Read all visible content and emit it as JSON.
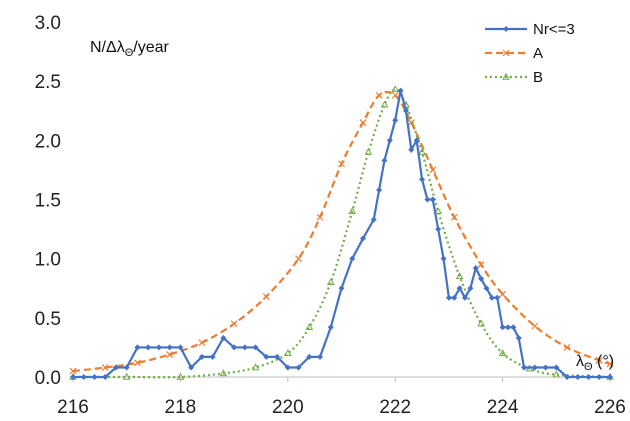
{
  "chart_data": {
    "type": "line",
    "title": "",
    "ylabel_parts": {
      "pre": "N/Δλ",
      "sub": "Θ",
      "post": "/year"
    },
    "xlabel_parts": {
      "pre": "λ",
      "sub": "Θ",
      "post": " (°)"
    },
    "xlim": [
      216,
      226
    ],
    "ylim": [
      0,
      3.0
    ],
    "x_ticks": [
      216,
      218,
      220,
      222,
      224,
      226
    ],
    "y_ticks": [
      0.0,
      0.5,
      1.0,
      1.5,
      2.0,
      2.5,
      3.0
    ],
    "x_tick_labels": [
      "216",
      "218",
      "220",
      "222",
      "224",
      "226"
    ],
    "y_tick_labels": [
      "0.0",
      "0.5",
      "1.0",
      "1.5",
      "2.0",
      "2.5",
      "3.0"
    ],
    "grid": false,
    "legend_position": "top-right",
    "series": [
      {
        "name": "Nr<=3",
        "color": "#4472c4",
        "style": "solid",
        "marker": "diamond",
        "points": [
          [
            216.0,
            0.0
          ],
          [
            216.2,
            0.0
          ],
          [
            216.4,
            0.0
          ],
          [
            216.6,
            0.0
          ],
          [
            216.8,
            0.08
          ],
          [
            217.0,
            0.08
          ],
          [
            217.2,
            0.25
          ],
          [
            217.4,
            0.25
          ],
          [
            217.6,
            0.25
          ],
          [
            217.8,
            0.25
          ],
          [
            218.0,
            0.25
          ],
          [
            218.2,
            0.08
          ],
          [
            218.4,
            0.17
          ],
          [
            218.6,
            0.17
          ],
          [
            218.8,
            0.33
          ],
          [
            219.0,
            0.25
          ],
          [
            219.2,
            0.25
          ],
          [
            219.4,
            0.25
          ],
          [
            219.6,
            0.17
          ],
          [
            219.8,
            0.17
          ],
          [
            220.0,
            0.08
          ],
          [
            220.2,
            0.08
          ],
          [
            220.4,
            0.17
          ],
          [
            220.6,
            0.17
          ],
          [
            220.8,
            0.42
          ],
          [
            221.0,
            0.75
          ],
          [
            221.2,
            1.0
          ],
          [
            221.4,
            1.17
          ],
          [
            221.6,
            1.33
          ],
          [
            221.7,
            1.58
          ],
          [
            221.8,
            1.83
          ],
          [
            221.9,
            2.0
          ],
          [
            222.0,
            2.17
          ],
          [
            222.1,
            2.42
          ],
          [
            222.2,
            2.25
          ],
          [
            222.3,
            1.92
          ],
          [
            222.4,
            2.0
          ],
          [
            222.5,
            1.67
          ],
          [
            222.6,
            1.5
          ],
          [
            222.7,
            1.5
          ],
          [
            222.8,
            1.25
          ],
          [
            222.9,
            1.0
          ],
          [
            223.0,
            0.67
          ],
          [
            223.1,
            0.67
          ],
          [
            223.2,
            0.75
          ],
          [
            223.3,
            0.67
          ],
          [
            223.4,
            0.75
          ],
          [
            223.5,
            0.92
          ],
          [
            223.6,
            0.83
          ],
          [
            223.7,
            0.75
          ],
          [
            223.8,
            0.67
          ],
          [
            223.9,
            0.67
          ],
          [
            224.0,
            0.42
          ],
          [
            224.1,
            0.42
          ],
          [
            224.2,
            0.42
          ],
          [
            224.3,
            0.33
          ],
          [
            224.4,
            0.08
          ],
          [
            224.6,
            0.08
          ],
          [
            224.8,
            0.08
          ],
          [
            225.0,
            0.08
          ],
          [
            225.2,
            0.0
          ],
          [
            225.4,
            0.0
          ],
          [
            225.6,
            0.0
          ],
          [
            225.8,
            0.0
          ],
          [
            226.0,
            0.0
          ]
        ]
      },
      {
        "name": "A",
        "color": "#ed7d31",
        "style": "dashed",
        "marker": "x",
        "points": [
          [
            216.0,
            0.05
          ],
          [
            216.6,
            0.08
          ],
          [
            217.2,
            0.12
          ],
          [
            217.8,
            0.19
          ],
          [
            218.4,
            0.29
          ],
          [
            219.0,
            0.45
          ],
          [
            219.6,
            0.68
          ],
          [
            220.2,
            1.0
          ],
          [
            220.6,
            1.35
          ],
          [
            221.0,
            1.8
          ],
          [
            221.4,
            2.15
          ],
          [
            221.7,
            2.38
          ],
          [
            222.0,
            2.38
          ],
          [
            222.3,
            2.15
          ],
          [
            222.7,
            1.75
          ],
          [
            223.1,
            1.35
          ],
          [
            223.6,
            0.95
          ],
          [
            224.0,
            0.7
          ],
          [
            224.6,
            0.43
          ],
          [
            225.2,
            0.25
          ],
          [
            225.8,
            0.14
          ],
          [
            226.0,
            0.11
          ]
        ]
      },
      {
        "name": "B",
        "color": "#70ad47",
        "style": "dotted",
        "marker": "triangle",
        "points": [
          [
            216.0,
            0.0
          ],
          [
            217.0,
            0.0
          ],
          [
            218.0,
            0.0
          ],
          [
            218.8,
            0.03
          ],
          [
            219.4,
            0.08
          ],
          [
            220.0,
            0.2
          ],
          [
            220.4,
            0.42
          ],
          [
            220.8,
            0.8
          ],
          [
            221.2,
            1.4
          ],
          [
            221.5,
            1.9
          ],
          [
            221.8,
            2.3
          ],
          [
            222.0,
            2.43
          ],
          [
            222.2,
            2.3
          ],
          [
            222.5,
            1.9
          ],
          [
            222.8,
            1.4
          ],
          [
            223.2,
            0.85
          ],
          [
            223.6,
            0.45
          ],
          [
            224.0,
            0.2
          ],
          [
            224.5,
            0.07
          ],
          [
            225.0,
            0.02
          ],
          [
            226.0,
            0.0
          ]
        ]
      }
    ]
  }
}
